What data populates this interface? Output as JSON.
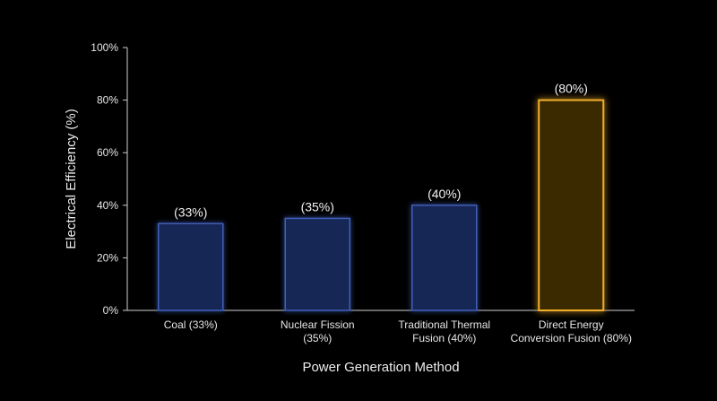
{
  "chart_data": {
    "type": "bar",
    "categories": [
      [
        "Coal (33%)"
      ],
      [
        "Nuclear Fission",
        "(35%)"
      ],
      [
        "Traditional Thermal",
        "Fusion (40%)"
      ],
      [
        "Direct Energy",
        "Conversion Fusion (80%)"
      ]
    ],
    "values": [
      33,
      35,
      40,
      80
    ],
    "value_labels": [
      "(33%)",
      "(35%)",
      "(40%)",
      "(80%)"
    ],
    "xlabel": "Power Generation Method",
    "ylabel": "Electrical Efficiency (%)",
    "ylim": [
      0,
      100
    ],
    "yticks": [
      "0%",
      "20%",
      "40%",
      "60%",
      "80%",
      "100%"
    ],
    "ytick_values": [
      0,
      20,
      40,
      60,
      80,
      100
    ],
    "grid": false,
    "colors": {
      "default_bar_fill": "#182555",
      "default_bar_stroke": "#3f5fb8",
      "highlight_bar_fill": "#3a2a06",
      "highlight_bar_stroke": "#f0ad2a",
      "axis": "#cfcfcf",
      "text": "#e6e6e6"
    },
    "highlight_index": 3
  }
}
